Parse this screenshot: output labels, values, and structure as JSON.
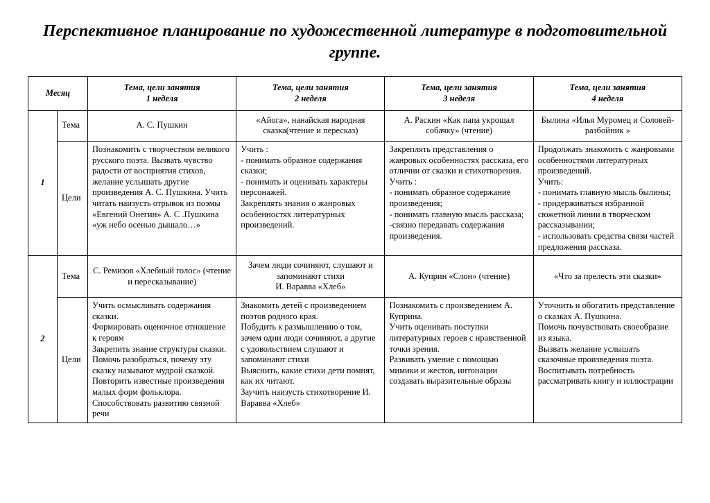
{
  "title": "Перспективное планирование по художественной литературе в подготовительной группе.",
  "headers": {
    "month": "Месяц",
    "w1": "Тема, цели занятия\n1 неделя",
    "w2": "Тема, цели занятия\n2 неделя",
    "w3": "Тема, цели занятия\n3 неделя",
    "w4": "Тема, цели занятия\n4 неделя"
  },
  "rowLabels": {
    "tema": "Тема",
    "goals": "Цели"
  },
  "months": [
    {
      "num": "1",
      "tema": {
        "w1": "А. С. Пушкин",
        "w2": "«Айога», нанайская народная сказка(чтение и пересказ)",
        "w3": "А. Раскин «Как папа укрощал собачку» (чтение)",
        "w4": "Былина «Илья Муромец и Соловей-разбойник »"
      },
      "goals": {
        "w1": "Познакомить с творчеством великого русского поэта. Вызвать чувство радости от восприятия стихов, желание услышать другие произведения А. С. Пушкина. Учить читать наизусть отрывок из поэмы «Евгений Онегин» А. С .Пушкина «уж небо осенью дышало…»",
        "w2": "Учить :\n - понимать образное содержания сказки;\n - понимать и оценивать характеры персонажей.\nЗакреплять знания о жанровых особенностях литературных произведений.",
        "w3": "Закреплять представления о жанровых особенностях рассказа, его отличии от сказки и стихотворения.\nУчить :\n- понимать образное содержание произведения;\n- понимать главную мысль рассказа;\n-связно передавать содержания произведения.",
        "w4": "Продолжать знакомить с жанровыми особенностями литературных произведений.\nУчить:\n- понимать главную мысль былины;\n- придерживаться избранной сюжетной линии в творческом рассказывании;\n- использовать средства связи частей предложения рассказа."
      }
    },
    {
      "num": "2",
      "tema": {
        "w1": "С. Ремизов «Хлебный голос» (чтение и  пересказывание)",
        "w2": "Зачем люди сочиняют, слушают и запоминают стихи\nИ. Варавва  «Хлеб»",
        "w3": "А. Куприн «Слон» (чтение)",
        "w4": "«Что за прелесть эти сказки»"
      },
      "goals": {
        "w1": "Учить осмысливать содержания сказки.\nФормировать  оценочное отношение к героям\nЗакрепить знание структуры сказки.\nПомочь разобраться, почему эту сказку называют мудрой сказкой.\nПовторить известные произведения малых форм фольклора.\nСпособствовать развитию связной речи",
        "w2": "Знакомить детей с произведением  поэтов родного края.\nПобудить к размышлению о том, зачем одни люди сочиняют, а другие с удовольствием слушают и запоминают стихи\nВыяснить, какие стихи дети помнят, как их читают.\nЗаучить наизусть стихотворение И. Варавва «Хлеб»",
        "w3": "Познакомить с произведением А. Куприна.\nУчить оценивать поступки литературных героев с нравственной  точки зрения.\nРазвивать умение с помощью мимики и жестов, интонации создавать выразительные образы",
        "w4": "Уточнить и обогатить представление о сказках А. Пушкина.\nПомочь почувствовать своеобразие из языка.\nВызвать желание услышать сказочные произведения поэта.\nВоспитывать потребность рассматривать книгу и иллюстрации"
      }
    }
  ]
}
